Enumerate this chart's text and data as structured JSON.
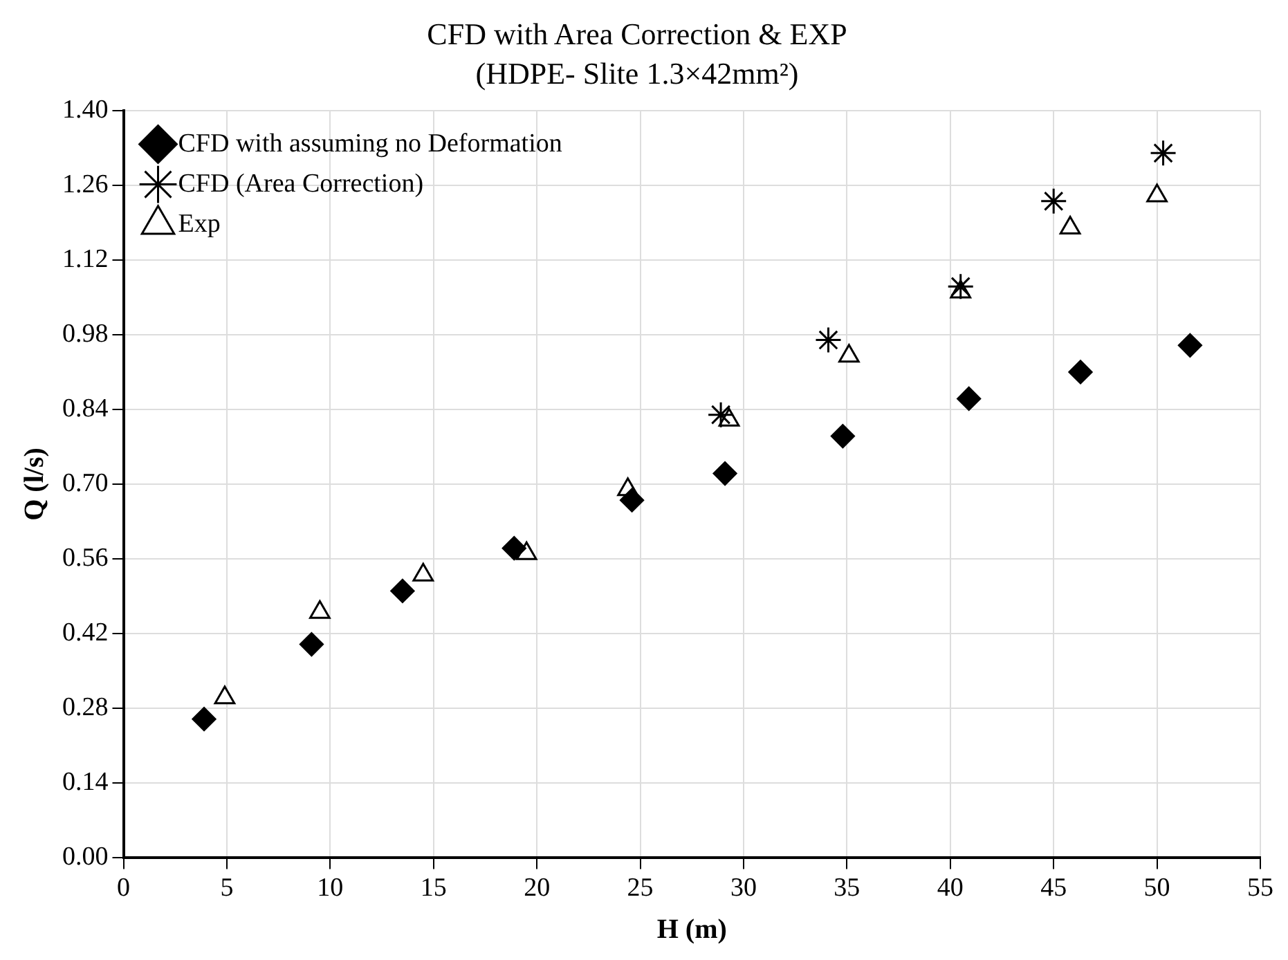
{
  "chart_data": {
    "type": "scatter",
    "title": "CFD with Area Correction & EXP",
    "subtitle": "(HDPE- Slite 1.3×42mm²)",
    "xlabel": "H (m)",
    "ylabel": "Q (l/s)",
    "xlim": [
      0,
      55
    ],
    "xticks": [
      0,
      5,
      10,
      15,
      20,
      25,
      30,
      35,
      40,
      45,
      50,
      55
    ],
    "ylim": [
      0,
      1.4
    ],
    "yticks": [
      {
        "value": 0,
        "label": "0.00"
      },
      0.14,
      0.28,
      0.42,
      0.56,
      {
        "value": 0.7,
        "label": "0.70"
      },
      0.84,
      0.98,
      1.12,
      1.26,
      {
        "value": 1.4,
        "label": "1.40"
      }
    ],
    "grid": true,
    "legend": "top left",
    "series": [
      {
        "name": "CFD with assuming no Deformation",
        "color": "#000000",
        "marker": "diamond",
        "x": [
          3.9,
          9.1,
          13.5,
          18.9,
          24.6,
          29.1,
          34.8,
          40.9,
          46.3,
          51.6
        ],
        "values": [
          0.26,
          0.4,
          0.5,
          0.58,
          0.67,
          0.72,
          0.79,
          0.86,
          0.91,
          0.96
        ]
      },
      {
        "name": "CFD (Area Correction)",
        "color": "#000000",
        "marker": "cross",
        "x": [
          28.9,
          34.1,
          40.5,
          45.0,
          50.3
        ],
        "values": [
          0.83,
          0.97,
          1.07,
          1.23,
          1.32
        ]
      },
      {
        "name": "Exp",
        "color": "#000000",
        "marker": "triangle",
        "x": [
          4.9,
          9.5,
          14.5,
          19.5,
          24.4,
          29.3,
          35.1,
          40.5,
          45.8,
          50.0
        ],
        "values": [
          0.3,
          0.46,
          0.53,
          0.57,
          0.69,
          0.82,
          0.94,
          1.06,
          1.18,
          1.24
        ]
      }
    ]
  }
}
